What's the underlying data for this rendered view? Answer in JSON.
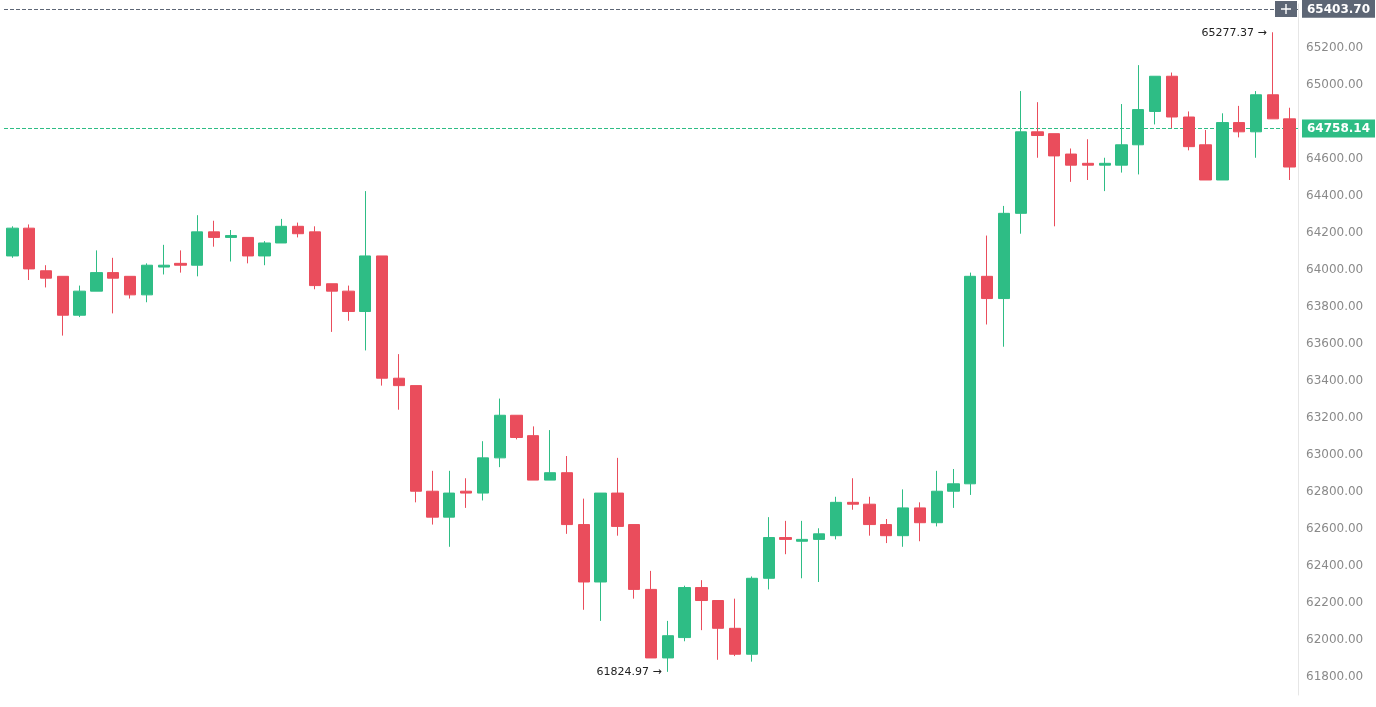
{
  "chart_data": {
    "type": "candlestick",
    "categories": [
      null,
      null,
      null,
      null,
      null,
      null,
      null,
      null,
      null,
      null,
      null,
      null,
      null,
      null,
      null,
      null,
      null,
      null,
      null,
      null,
      null,
      null,
      null,
      null,
      null,
      null,
      null,
      null,
      null,
      null,
      null,
      null,
      null,
      null,
      null,
      null,
      null,
      null,
      null,
      null,
      null,
      null,
      null,
      null,
      null,
      null,
      null,
      null,
      null,
      null,
      null,
      null,
      null,
      null,
      null,
      null,
      null,
      null,
      null,
      null,
      null,
      null,
      null,
      null,
      null,
      null,
      null,
      null,
      null,
      null,
      null,
      null,
      null,
      null,
      null,
      null,
      null
    ],
    "ohlc": [
      [
        64070,
        64230,
        64060,
        64220
      ],
      [
        64220,
        64240,
        63940,
        64000
      ],
      [
        63990,
        64020,
        63900,
        63950
      ],
      [
        63960,
        63960,
        63640,
        63750
      ],
      [
        63750,
        63910,
        63740,
        63880
      ],
      [
        63880,
        64100,
        63880,
        63980
      ],
      [
        63980,
        64060,
        63760,
        63950
      ],
      [
        63960,
        63960,
        63840,
        63860
      ],
      [
        63860,
        64030,
        63820,
        64020
      ],
      [
        64010,
        64130,
        63970,
        64020
      ],
      [
        64030,
        64100,
        63980,
        64020
      ],
      [
        64020,
        64290,
        63960,
        64200
      ],
      [
        64200,
        64260,
        64120,
        64170
      ],
      [
        64170,
        64210,
        64040,
        64180
      ],
      [
        64170,
        64170,
        64030,
        64070
      ],
      [
        64070,
        64150,
        64020,
        64140
      ],
      [
        64140,
        64270,
        64140,
        64230
      ],
      [
        64230,
        64250,
        64170,
        64190
      ],
      [
        64200,
        64230,
        63890,
        63910
      ],
      [
        63920,
        63920,
        63660,
        63880
      ],
      [
        63880,
        63910,
        63720,
        63770
      ],
      [
        63770,
        64420,
        63560,
        64070
      ],
      [
        64070,
        64070,
        63370,
        63410
      ],
      [
        63410,
        63540,
        63240,
        63370
      ],
      [
        63370,
        63370,
        62740,
        62800
      ],
      [
        62800,
        62910,
        62620,
        62660
      ],
      [
        62660,
        62910,
        62500,
        62790
      ],
      [
        62800,
        62870,
        62710,
        62790
      ],
      [
        62790,
        63070,
        62750,
        62980
      ],
      [
        62980,
        63300,
        62930,
        63210
      ],
      [
        63210,
        63210,
        63080,
        63090
      ],
      [
        63100,
        63150,
        62860,
        62860
      ],
      [
        62860,
        63130,
        62860,
        62900
      ],
      [
        62900,
        62990,
        62570,
        62620
      ],
      [
        62620,
        62760,
        62160,
        62310
      ],
      [
        62310,
        62790,
        62100,
        62790
      ],
      [
        62790,
        62980,
        62560,
        62610
      ],
      [
        62620,
        62620,
        62220,
        62270
      ],
      [
        62270,
        62370,
        61900,
        61900
      ],
      [
        61900,
        62100,
        61824.97,
        62020
      ],
      [
        62010,
        62290,
        61990,
        62280
      ],
      [
        62280,
        62320,
        62050,
        62210
      ],
      [
        62210,
        62210,
        61890,
        62060
      ],
      [
        62060,
        62220,
        61910,
        61920
      ],
      [
        61920,
        62340,
        61880,
        62330
      ],
      [
        62330,
        62660,
        62270,
        62550
      ],
      [
        62550,
        62640,
        62460,
        62540
      ],
      [
        62530,
        62640,
        62330,
        62540
      ],
      [
        62540,
        62600,
        62310,
        62570
      ],
      [
        62560,
        62770,
        62540,
        62740
      ],
      [
        62740,
        62870,
        62700,
        62730
      ],
      [
        62730,
        62770,
        62560,
        62620
      ],
      [
        62620,
        62650,
        62520,
        62560
      ],
      [
        62560,
        62810,
        62500,
        62710
      ],
      [
        62710,
        62740,
        62530,
        62630
      ],
      [
        62630,
        62910,
        62610,
        62800
      ],
      [
        62800,
        62920,
        62710,
        62840
      ],
      [
        62840,
        63980,
        62780,
        63960
      ],
      [
        63960,
        64180,
        63700,
        63840
      ],
      [
        63840,
        64340,
        63580,
        64300
      ],
      [
        64300,
        64960,
        64190,
        64740
      ],
      [
        64740,
        64900,
        64600,
        64720
      ],
      [
        64730,
        64730,
        64230,
        64610
      ],
      [
        64620,
        64650,
        64470,
        64560
      ],
      [
        64570,
        64700,
        64480,
        64560
      ],
      [
        64560,
        64600,
        64420,
        64570
      ],
      [
        64560,
        64890,
        64520,
        64670
      ],
      [
        64670,
        65100,
        64510,
        64860
      ],
      [
        64850,
        65040,
        64780,
        65040
      ],
      [
        65040,
        65060,
        64760,
        64820
      ],
      [
        64820,
        64850,
        64640,
        64660
      ],
      [
        64670,
        64750,
        64480,
        64480
      ],
      [
        64480,
        64840,
        64480,
        64790
      ],
      [
        64790,
        64880,
        64710,
        64740
      ],
      [
        64740,
        64960,
        64600,
        64940
      ],
      [
        64940,
        65277.37,
        64810,
        64810
      ],
      [
        64810,
        64870,
        64480,
        64550
      ]
    ],
    "ylim": [
      61700,
      65430
    ],
    "yticks": [
      {
        "value": 61800,
        "label": "61800.00"
      },
      {
        "value": 62000,
        "label": "62000.00"
      },
      {
        "value": 62200,
        "label": "62200.00"
      },
      {
        "value": 62400,
        "label": "62400.00"
      },
      {
        "value": 62600,
        "label": "62600.00"
      },
      {
        "value": 62800,
        "label": "62800.00"
      },
      {
        "value": 63000,
        "label": "63000.00"
      },
      {
        "value": 63200,
        "label": "63200.00"
      },
      {
        "value": 63400,
        "label": "63400.00"
      },
      {
        "value": 63600,
        "label": "63600.00"
      },
      {
        "value": 63800,
        "label": "63800.00"
      },
      {
        "value": 64000,
        "label": "64000.00"
      },
      {
        "value": 64200,
        "label": "64200.00"
      },
      {
        "value": 64400,
        "label": "64400.00"
      },
      {
        "value": 64600,
        "label": "64600.00"
      },
      {
        "value": 64800,
        "label": null
      },
      {
        "value": 65000,
        "label": "65000.00"
      },
      {
        "value": 65200,
        "label": "65200.00"
      }
    ],
    "tick_labels": "y",
    "ref_lines": [
      {
        "axis": "y",
        "value": 64758.14,
        "label": "64758.14",
        "color": "#2ebd85",
        "line_style": "dashed"
      },
      {
        "axis": "y",
        "value": 65403.7,
        "label": "65403.70",
        "color": "#5d6675",
        "line_style": "dashed"
      }
    ],
    "annotations": [
      "65277.37 →",
      "61824.97 →"
    ]
  }
}
